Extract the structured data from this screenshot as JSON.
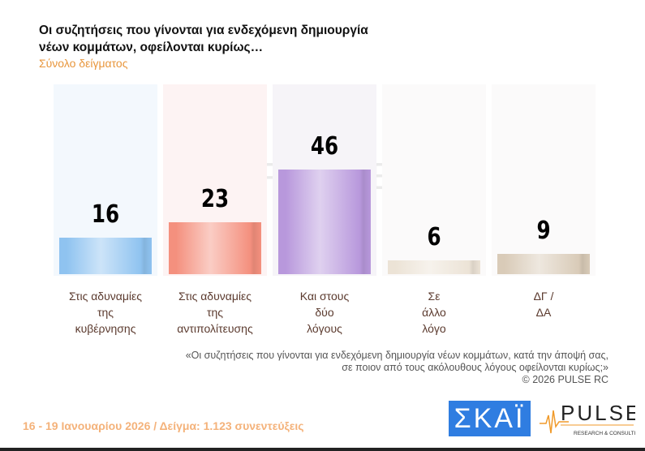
{
  "title": "Οι συζητήσεις που γίνονται για ενδεχόμενη δημιουργία νέων κομμάτων, οφείλονται κυρίως…",
  "subtitle": "Σύνολο δείγματος",
  "chart_data": {
    "type": "bar",
    "categories": [
      "Στις αδυναμίες\nτης\nκυβέρνησης",
      "Στις αδυναμίες\nτης\nαντιπολίτευσης",
      "Και στους\nδύο\nλόγους",
      "Σε\nάλλο\nλόγο",
      "ΔΓ /\nΔΑ"
    ],
    "values": [
      16,
      23,
      46,
      6,
      9
    ],
    "colors": [
      "#8fc3f0",
      "#f4907e",
      "#b898dc",
      "#ece3d6",
      "#d9cbb8"
    ],
    "panel_colors": [
      "#f3f8fd",
      "#fdf3f3",
      "#f6f4f8",
      "#fbfafa",
      "#fbfafa"
    ],
    "data_labels": [
      "16",
      "23",
      "46",
      "6",
      "9"
    ]
  },
  "note": {
    "line1": "«Οι συζητήσεις που γίνονται για ενδεχόμενη δημιουργία νέων κομμάτων, κατά την άποψή σας,",
    "line2": "σε ποιον από τους ακόλουθους λόγους οφείλονται κυρίως;»",
    "copyright": "©  2026  PULSE RC"
  },
  "footer": "16 - 19 Ιανουαρίου 2026  /  Δείγμα:  1.123 συνεντεύξεις",
  "logos": {
    "skai": "ΣΚΑΪ",
    "pulse": "PULSE",
    "pulse_sub": "RESEARCH & CONSULTING"
  }
}
